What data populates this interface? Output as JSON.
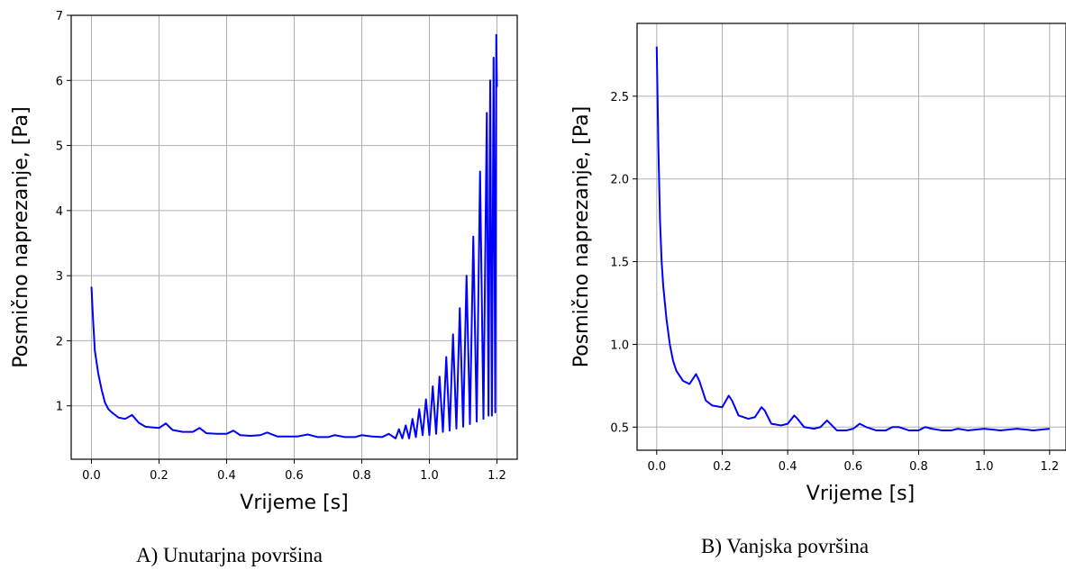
{
  "captions": {
    "a": "A) Unutarjna površina",
    "b": "B) Vanjska površina"
  },
  "style": {
    "line_color": "#0000ff",
    "grid_color": "#b0b0b0",
    "axis_color": "#000000"
  },
  "chart_data": [
    {
      "type": "line",
      "xlabel": "Vrijeme [s]",
      "ylabel": "Posmično naprezanje, [Pa]",
      "xlim": [
        -0.06,
        1.26
      ],
      "ylim": [
        0.18,
        7.0
      ],
      "xticks": [
        0.0,
        0.2,
        0.4,
        0.6,
        0.8,
        1.0,
        1.2
      ],
      "xtick_labels": [
        "0.0",
        "0.2",
        "0.4",
        "0.6",
        "0.8",
        "1.0",
        "1.2"
      ],
      "yticks": [
        1,
        2,
        3,
        4,
        5,
        6,
        7
      ],
      "ytick_labels": [
        "1",
        "2",
        "3",
        "4",
        "5",
        "6",
        "7"
      ],
      "grid": true,
      "series": [
        {
          "x": [
            0.0,
            0.005,
            0.01,
            0.02,
            0.03,
            0.04,
            0.05,
            0.06,
            0.08,
            0.1,
            0.12,
            0.14,
            0.16,
            0.18,
            0.2,
            0.22,
            0.24,
            0.27,
            0.3,
            0.32,
            0.34,
            0.37,
            0.4,
            0.42,
            0.44,
            0.47,
            0.5,
            0.52,
            0.55,
            0.58,
            0.61,
            0.64,
            0.67,
            0.7,
            0.72,
            0.75,
            0.78,
            0.8,
            0.83,
            0.86,
            0.88,
            0.9,
            0.91,
            0.92,
            0.93,
            0.94,
            0.95,
            0.96,
            0.97,
            0.98,
            0.99,
            1.0,
            1.01,
            1.02,
            1.03,
            1.04,
            1.05,
            1.06,
            1.07,
            1.08,
            1.09,
            1.1,
            1.11,
            1.12,
            1.13,
            1.14,
            1.15,
            1.16,
            1.17,
            1.175,
            1.18,
            1.185,
            1.19,
            1.195,
            1.198,
            1.2
          ],
          "y": [
            2.83,
            2.3,
            1.85,
            1.5,
            1.25,
            1.05,
            0.95,
            0.9,
            0.82,
            0.8,
            0.86,
            0.74,
            0.68,
            0.67,
            0.66,
            0.73,
            0.63,
            0.6,
            0.6,
            0.66,
            0.58,
            0.57,
            0.57,
            0.62,
            0.55,
            0.54,
            0.55,
            0.59,
            0.53,
            0.53,
            0.53,
            0.56,
            0.52,
            0.52,
            0.55,
            0.52,
            0.52,
            0.55,
            0.53,
            0.52,
            0.57,
            0.5,
            0.64,
            0.5,
            0.7,
            0.5,
            0.8,
            0.52,
            0.95,
            0.55,
            1.1,
            0.55,
            1.3,
            0.57,
            1.45,
            0.6,
            1.75,
            0.62,
            2.1,
            0.65,
            2.5,
            0.68,
            3.0,
            0.72,
            3.6,
            0.76,
            4.6,
            0.8,
            5.5,
            0.85,
            6.0,
            0.85,
            6.35,
            0.9,
            6.7,
            5.9
          ]
        }
      ]
    },
    {
      "type": "line",
      "xlabel": "Vrijeme [s]",
      "ylabel": "Posmično naprezanje, [Pa]",
      "xlim": [
        -0.06,
        1.25
      ],
      "ylim": [
        0.36,
        2.94
      ],
      "xticks": [
        0.0,
        0.2,
        0.4,
        0.6,
        0.8,
        1.0,
        1.2
      ],
      "xtick_labels": [
        "0.0",
        "0.2",
        "0.4",
        "0.6",
        "0.8",
        "1.0",
        "1.2"
      ],
      "yticks": [
        0.5,
        1.0,
        1.5,
        2.0,
        2.5
      ],
      "ytick_labels": [
        "0.5",
        "1.0",
        "1.5",
        "2.0",
        "2.5"
      ],
      "grid": true,
      "series": [
        {
          "x": [
            0.0,
            0.005,
            0.01,
            0.015,
            0.02,
            0.03,
            0.04,
            0.05,
            0.06,
            0.08,
            0.1,
            0.12,
            0.13,
            0.15,
            0.17,
            0.2,
            0.22,
            0.23,
            0.25,
            0.28,
            0.3,
            0.32,
            0.33,
            0.35,
            0.38,
            0.4,
            0.42,
            0.43,
            0.45,
            0.48,
            0.5,
            0.52,
            0.53,
            0.55,
            0.58,
            0.6,
            0.62,
            0.64,
            0.67,
            0.7,
            0.72,
            0.74,
            0.77,
            0.8,
            0.82,
            0.84,
            0.87,
            0.9,
            0.92,
            0.95,
            1.0,
            1.05,
            1.1,
            1.15,
            1.2
          ],
          "y": [
            2.8,
            2.2,
            1.75,
            1.5,
            1.35,
            1.15,
            1.0,
            0.9,
            0.84,
            0.78,
            0.76,
            0.82,
            0.78,
            0.66,
            0.63,
            0.62,
            0.69,
            0.66,
            0.57,
            0.55,
            0.56,
            0.62,
            0.6,
            0.52,
            0.51,
            0.52,
            0.57,
            0.55,
            0.5,
            0.49,
            0.5,
            0.54,
            0.52,
            0.48,
            0.48,
            0.49,
            0.52,
            0.5,
            0.48,
            0.48,
            0.5,
            0.5,
            0.48,
            0.48,
            0.5,
            0.49,
            0.48,
            0.48,
            0.49,
            0.48,
            0.49,
            0.48,
            0.49,
            0.48,
            0.49
          ]
        }
      ]
    }
  ]
}
